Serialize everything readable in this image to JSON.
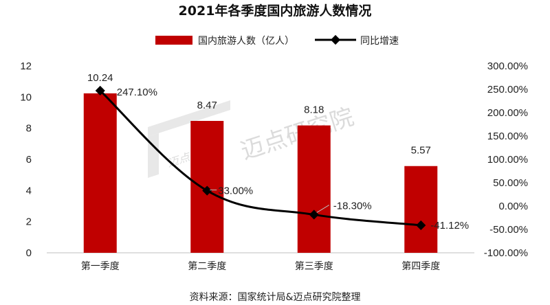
{
  "chart_data": {
    "type": "bar+line",
    "title": "2021年各季度国内旅游人数情况",
    "categories": [
      "第一季度",
      "第二季度",
      "第三季度",
      "第四季度"
    ],
    "series": [
      {
        "name": "国内旅游人数（亿人）",
        "type": "bar",
        "axis": "left",
        "color": "#C00000",
        "values": [
          10.24,
          8.47,
          8.18,
          5.57
        ],
        "labels": [
          "10.24",
          "8.47",
          "8.18",
          "5.57"
        ]
      },
      {
        "name": "同比增速",
        "type": "line",
        "axis": "right",
        "color": "#000000",
        "values": [
          247.1,
          33.0,
          -18.3,
          -41.12
        ],
        "labels": [
          "247.10%",
          "33.00%",
          "-18.30%",
          "-41.12%"
        ]
      }
    ],
    "y_left": {
      "min": 0,
      "max": 12,
      "step": 2,
      "ticks": [
        "0",
        "2",
        "4",
        "6",
        "8",
        "10",
        "12"
      ]
    },
    "y_right": {
      "min": -100,
      "max": 300,
      "step": 50,
      "ticks": [
        "-100.00%",
        "-50.00%",
        "0.00%",
        "50.00%",
        "100.00%",
        "150.00%",
        "200.00%",
        "250.00%",
        "300.00%"
      ]
    },
    "legend_position": "top-center",
    "source": "资料来源：国家统计局&迈点研究院整理"
  },
  "watermark": {
    "text": "迈点研究院",
    "logo_text": "迈点研究院"
  }
}
